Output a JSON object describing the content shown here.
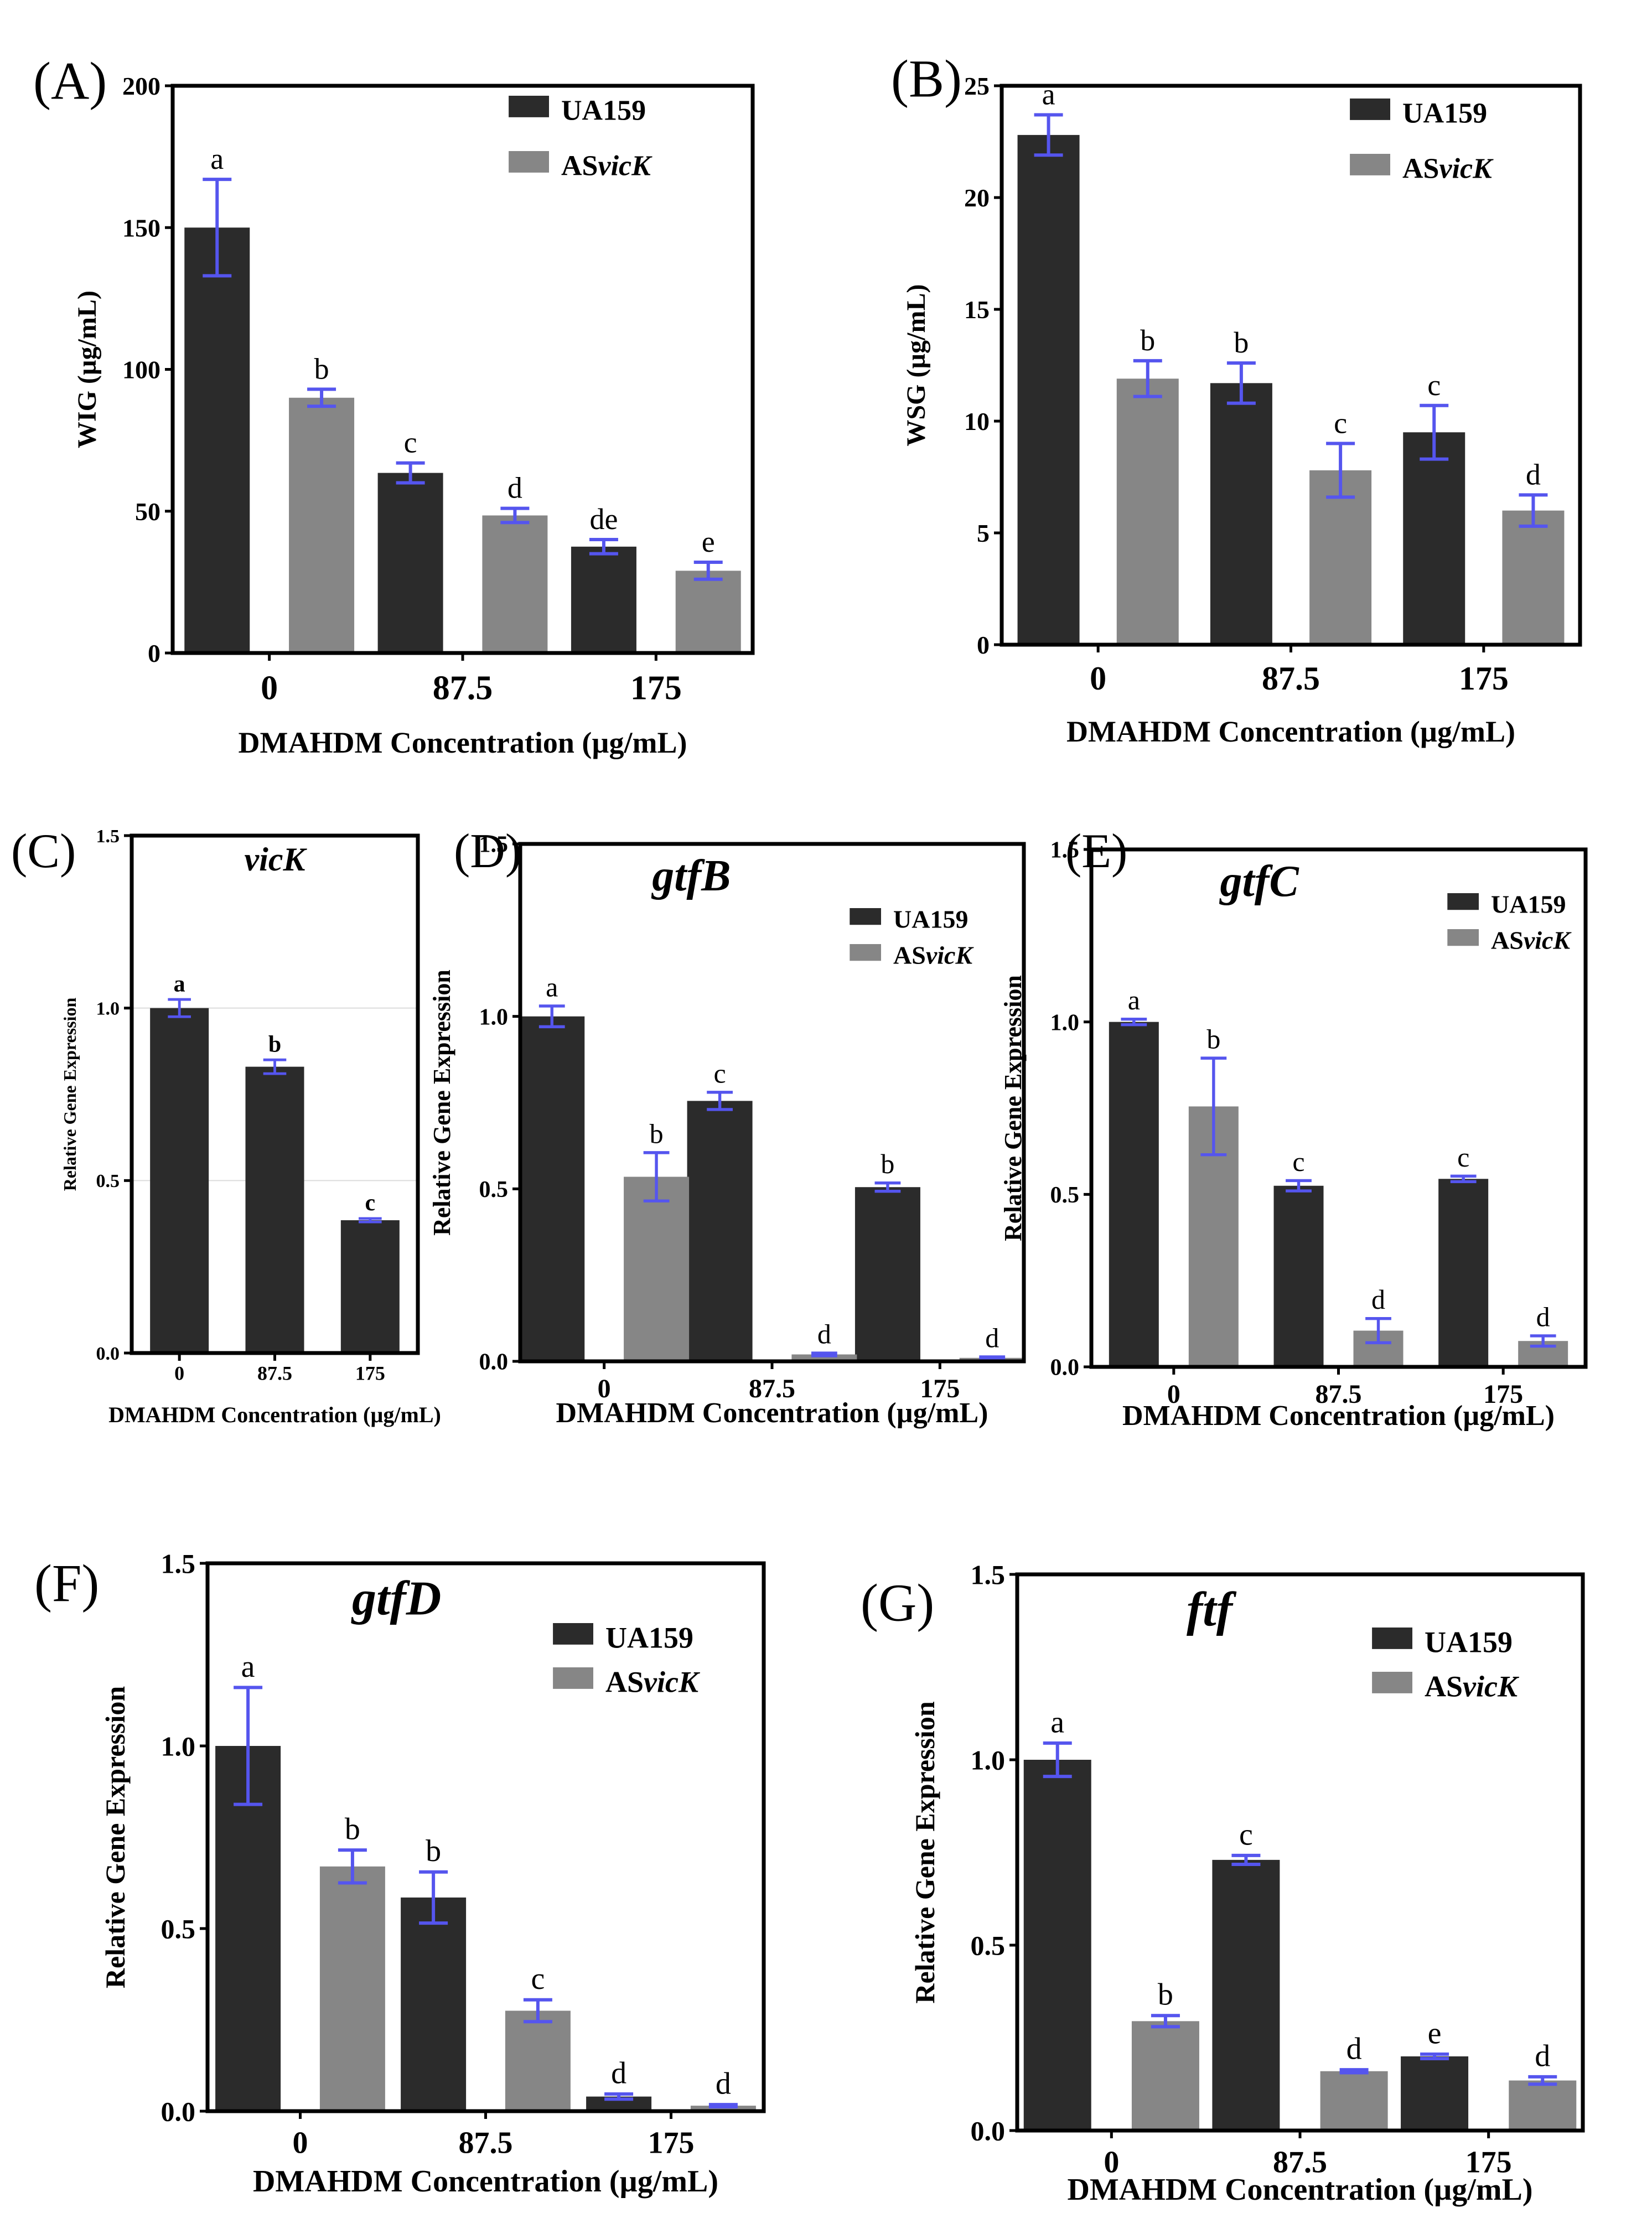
{
  "colors": {
    "ua159": "#2b2b2b",
    "asvick": "#868686",
    "error_bar": "#5555ee",
    "axis": "#000000"
  },
  "chart_data": [
    {
      "type": "bar",
      "panel_label": "(A)",
      "title": "",
      "xlabel": "DMAHDM Concentration (µg/mL)",
      "ylabel": "WIG (µg/mL)",
      "ylim": [
        0,
        200
      ],
      "yticks": [
        "0",
        "50",
        "100",
        "150",
        "200"
      ],
      "categories": [
        "0",
        "87.5",
        "175"
      ],
      "legend": {
        "position": "top-right",
        "entries": [
          {
            "prefix": "UA159",
            "italic": ""
          },
          {
            "prefix": "AS",
            "italic": "vicK"
          }
        ]
      },
      "series": [
        {
          "name": "UA159",
          "values": [
            150,
            63.5,
            37.5
          ],
          "errors": [
            17,
            3.5,
            2.5
          ],
          "letters": [
            "a",
            "c",
            "de"
          ]
        },
        {
          "name": "ASvicK",
          "values": [
            90,
            48.5,
            29
          ],
          "errors": [
            3,
            2.5,
            3
          ],
          "letters": [
            "b",
            "d",
            "e"
          ]
        }
      ]
    },
    {
      "type": "bar",
      "panel_label": "(B)",
      "title": "",
      "xlabel": "DMAHDM Concentration (µg/mL)",
      "ylabel": "WSG (µg/mL)",
      "ylim": [
        0,
        25
      ],
      "yticks": [
        "0",
        "5",
        "10",
        "15",
        "20",
        "25"
      ],
      "categories": [
        "0",
        "87.5",
        "175"
      ],
      "legend": {
        "position": "top-right",
        "entries": [
          {
            "prefix": "UA159",
            "italic": ""
          },
          {
            "prefix": "AS",
            "italic": "vicK"
          }
        ]
      },
      "series": [
        {
          "name": "UA159",
          "values": [
            22.8,
            11.7,
            9.5
          ],
          "errors": [
            0.9,
            0.9,
            1.2
          ],
          "letters": [
            "a",
            "b",
            "c"
          ]
        },
        {
          "name": "ASvicK",
          "values": [
            11.9,
            7.8,
            6.0
          ],
          "errors": [
            0.8,
            1.2,
            0.7
          ],
          "letters": [
            "b",
            "c",
            "d"
          ]
        }
      ]
    },
    {
      "type": "bar",
      "panel_label": "(C)",
      "title": "vicK",
      "xlabel": "DMAHDM Concentration (µg/mL)",
      "ylabel": "Relative Gene Expression",
      "ylim": [
        0,
        1.5
      ],
      "yticks": [
        "0.0",
        "0.5",
        "1.0",
        "1.5"
      ],
      "categories": [
        "0",
        "87.5",
        "175"
      ],
      "grid": true,
      "legend": null,
      "series": [
        {
          "name": "UA159",
          "values": [
            1.0,
            0.83,
            0.385
          ],
          "errors": [
            0.025,
            0.02,
            0.005
          ],
          "letters": [
            "a",
            "b",
            "c"
          ]
        }
      ]
    },
    {
      "type": "bar",
      "panel_label": "(D)",
      "title": "gtfB",
      "xlabel": "DMAHDM Concentration (µg/mL)",
      "ylabel": "Relative Gene Expression",
      "ylim": [
        0,
        1.5
      ],
      "yticks": [
        "0.0",
        "0.5",
        "1.0",
        "1.5"
      ],
      "categories": [
        "0",
        "87.5",
        "175"
      ],
      "legend": {
        "position": "top-right",
        "entries": [
          {
            "prefix": "UA159",
            "italic": ""
          },
          {
            "prefix": "AS",
            "italic": "vicK"
          }
        ]
      },
      "series": [
        {
          "name": "UA159",
          "values": [
            1.0,
            0.755,
            0.505
          ],
          "errors": [
            0.03,
            0.025,
            0.012
          ],
          "letters": [
            "a",
            "c",
            "b"
          ]
        },
        {
          "name": "ASvicK",
          "values": [
            0.535,
            0.02,
            0.01
          ],
          "errors": [
            0.07,
            0.004,
            0.003
          ],
          "letters": [
            "b",
            "d",
            "d"
          ]
        }
      ]
    },
    {
      "type": "bar",
      "panel_label": "(E)",
      "title": "gtfC",
      "xlabel": "DMAHDM Concentration (µg/mL)",
      "ylabel": "Relative Gene Expression",
      "ylim": [
        0,
        1.5
      ],
      "yticks": [
        "0.0",
        "0.5",
        "1.0",
        "1.5"
      ],
      "categories": [
        "0",
        "87.5",
        "175"
      ],
      "legend": {
        "position": "top-right",
        "entries": [
          {
            "prefix": "UA159",
            "italic": ""
          },
          {
            "prefix": "AS",
            "italic": "vicK"
          }
        ]
      },
      "series": [
        {
          "name": "UA159",
          "values": [
            1.0,
            0.525,
            0.545
          ],
          "errors": [
            0.008,
            0.015,
            0.008
          ],
          "letters": [
            "a",
            "c",
            "c"
          ]
        },
        {
          "name": "ASvicK",
          "values": [
            0.755,
            0.105,
            0.075
          ],
          "errors": [
            0.14,
            0.035,
            0.015
          ],
          "letters": [
            "b",
            "d",
            "d"
          ]
        }
      ]
    },
    {
      "type": "bar",
      "panel_label": "(F)",
      "title": "gtfD",
      "xlabel": "DMAHDM Concentration (µg/mL)",
      "ylabel": "Relative Gene Expression",
      "ylim": [
        0,
        1.5
      ],
      "yticks": [
        "0.0",
        "0.5",
        "1.0",
        "1.5"
      ],
      "categories": [
        "0",
        "87.5",
        "175"
      ],
      "legend": {
        "position": "top-right",
        "entries": [
          {
            "prefix": "UA159",
            "italic": ""
          },
          {
            "prefix": "AS",
            "italic": "vicK"
          }
        ]
      },
      "series": [
        {
          "name": "UA159",
          "values": [
            1.0,
            0.585,
            0.04
          ],
          "errors": [
            0.16,
            0.07,
            0.007
          ],
          "letters": [
            "a",
            "b",
            "d"
          ]
        },
        {
          "name": "ASvicK",
          "values": [
            0.67,
            0.275,
            0.015
          ],
          "errors": [
            0.045,
            0.03,
            0.003
          ],
          "letters": [
            "b",
            "c",
            "d"
          ]
        }
      ]
    },
    {
      "type": "bar",
      "panel_label": "(G)",
      "title": "ftf",
      "xlabel": "DMAHDM Concentration (µg/mL)",
      "ylabel": "Relative Gene Expression",
      "ylim": [
        0,
        1.5
      ],
      "yticks": [
        "0.0",
        "0.5",
        "1.0",
        "1.5"
      ],
      "categories": [
        "0",
        "87.5",
        "175"
      ],
      "legend": {
        "position": "top-right",
        "entries": [
          {
            "prefix": "UA159",
            "italic": ""
          },
          {
            "prefix": "AS",
            "italic": "vicK"
          }
        ]
      },
      "series": [
        {
          "name": "UA159",
          "values": [
            1.0,
            0.73,
            0.2
          ],
          "errors": [
            0.045,
            0.012,
            0.006
          ],
          "letters": [
            "a",
            "c",
            "e"
          ]
        },
        {
          "name": "ASvicK",
          "values": [
            0.295,
            0.16,
            0.135
          ],
          "errors": [
            0.015,
            0.004,
            0.01
          ],
          "letters": [
            "b",
            "d",
            "d"
          ]
        }
      ]
    }
  ]
}
